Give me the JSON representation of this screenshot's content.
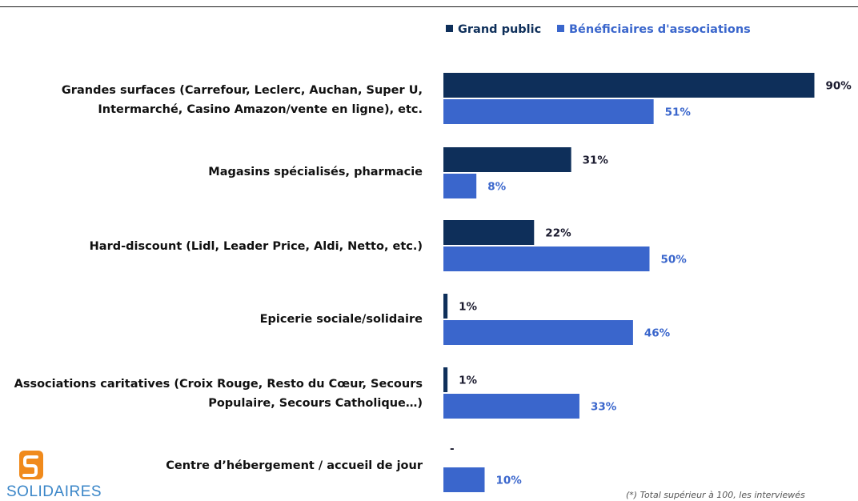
{
  "colors": {
    "grand_public": "#0e2f5a",
    "beneficiaires": "#3a66cc",
    "logo_orange": "#f08a1c",
    "logo_text": "#3a86c8"
  },
  "legend": [
    {
      "label": "Grand public",
      "color": "#0e2f5a"
    },
    {
      "label": "Bénéficiaires d'associations",
      "color": "#3a66cc"
    }
  ],
  "chart_data": {
    "type": "bar",
    "orientation": "horizontal",
    "categories": [
      [
        "Grandes surfaces (Carrefour, Leclerc, Auchan, Super U,",
        "Intermarché, Casino Amazon/vente en ligne), etc."
      ],
      [
        "Magasins spécialisés, pharmacie"
      ],
      [
        "Hard-discount (Lidl, Leader Price, Aldi, Netto, etc.)"
      ],
      [
        "Epicerie sociale/solidaire"
      ],
      [
        "Associations caritatives (Croix Rouge, Resto du Cœur, Secours",
        "Populaire, Secours Catholique…)"
      ],
      [
        "Centre d’hébergement / accueil de jour"
      ]
    ],
    "series": [
      {
        "name": "Grand public",
        "values": [
          90,
          31,
          22,
          1,
          1,
          null
        ],
        "labels": [
          "90%",
          "31%",
          "22%",
          "1%",
          "1%",
          "-"
        ]
      },
      {
        "name": "Bénéficiaires d'associations",
        "values": [
          51,
          8,
          50,
          46,
          33,
          10
        ],
        "labels": [
          "51%",
          "8%",
          "50%",
          "46%",
          "33%",
          "10%"
        ]
      }
    ],
    "xlim": [
      0,
      100
    ],
    "grid": false,
    "legend_position": "top"
  },
  "logo": {
    "text": "SOLIDAIRES"
  },
  "footnote": "(*) Total supérieur à 100, les interviewés"
}
